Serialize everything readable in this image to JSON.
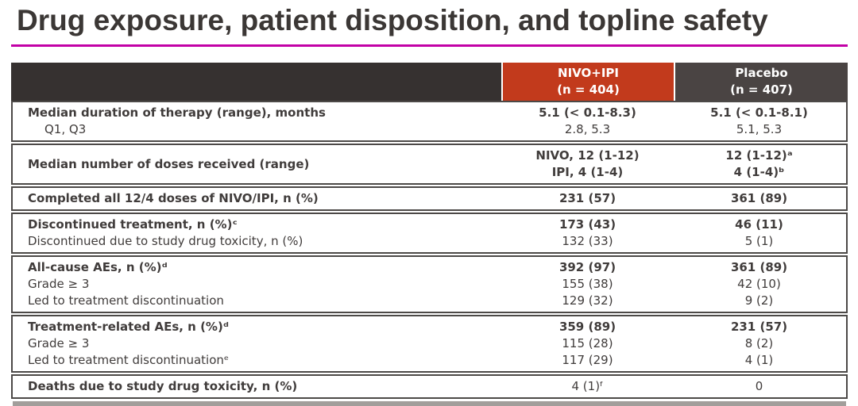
{
  "title": "Drug exposure, patient disposition, and topline safety",
  "colors": {
    "accent": "#c200a6",
    "nivo": "#c23a1c",
    "placebo": "#4a4443",
    "header_dark": "#363130",
    "border": "#4c4947",
    "text": "#403c3b",
    "text_title": "#3b3735"
  },
  "table": {
    "columns": [
      {
        "label": "NIVO+IPI",
        "n": "(n = 404)"
      },
      {
        "label": "Placebo",
        "n": "(n = 407)"
      }
    ],
    "groups": [
      {
        "lines": [
          {
            "label": "Median duration of therapy (range), months",
            "label_bold": true,
            "indent": false,
            "nivo": "5.1 (< 0.1-8.3)",
            "placebo": "5.1 (< 0.1-8.1)",
            "values_bold": true
          },
          {
            "label": "Q1, Q3",
            "label_bold": false,
            "indent": true,
            "nivo": "2.8, 5.3",
            "placebo": "5.1, 5.3",
            "values_bold": false
          }
        ]
      },
      {
        "span_label": "Median number of doses received (range)",
        "span_label_bold": true,
        "lines": [
          {
            "label": "",
            "nivo": "NIVO, 12 (1-12)",
            "placebo": "12 (1-12)ᵃ",
            "values_bold": true
          },
          {
            "label": "",
            "nivo": "IPI, 4 (1-4)",
            "placebo": "4 (1-4)ᵇ",
            "values_bold": true
          }
        ]
      },
      {
        "lines": [
          {
            "label": "Completed all 12/4 doses of NIVO/IPI, n (%)",
            "label_bold": true,
            "nivo": "231 (57)",
            "placebo": "361 (89)",
            "values_bold": true
          }
        ]
      },
      {
        "lines": [
          {
            "label": "Discontinued treatment, n (%)ᶜ",
            "label_bold": true,
            "nivo": "173 (43)",
            "placebo": "46 (11)",
            "values_bold": true
          },
          {
            "label": "Discontinued due to study drug toxicity, n (%)",
            "label_bold": false,
            "nivo": "132 (33)",
            "placebo": "5 (1)",
            "values_bold": false
          }
        ]
      },
      {
        "lines": [
          {
            "label": "All-cause AEs, n (%)ᵈ",
            "label_bold": true,
            "nivo": "392 (97)",
            "placebo": "361 (89)",
            "values_bold": true
          },
          {
            "label": "Grade ≥ 3",
            "label_bold": false,
            "nivo": "155 (38)",
            "placebo": "42 (10)",
            "values_bold": false
          },
          {
            "label": "Led to treatment discontinuation",
            "label_bold": false,
            "nivo": "129 (32)",
            "placebo": "9 (2)",
            "values_bold": false
          }
        ]
      },
      {
        "lines": [
          {
            "label": "Treatment-related AEs, n (%)ᵈ",
            "label_bold": true,
            "nivo": "359 (89)",
            "placebo": "231 (57)",
            "values_bold": true
          },
          {
            "label": "Grade ≥ 3",
            "label_bold": false,
            "nivo": "115 (28)",
            "placebo": "8 (2)",
            "values_bold": false
          },
          {
            "label": "Led to treatment discontinuationᵉ",
            "label_bold": false,
            "nivo": "117 (29)",
            "placebo": "4 (1)",
            "values_bold": false
          }
        ]
      },
      {
        "lines": [
          {
            "label": "Deaths due to study drug toxicity, n (%)",
            "label_bold": true,
            "nivo": "4 (1)ᶠ",
            "placebo": "0",
            "values_bold": false
          }
        ]
      }
    ]
  }
}
